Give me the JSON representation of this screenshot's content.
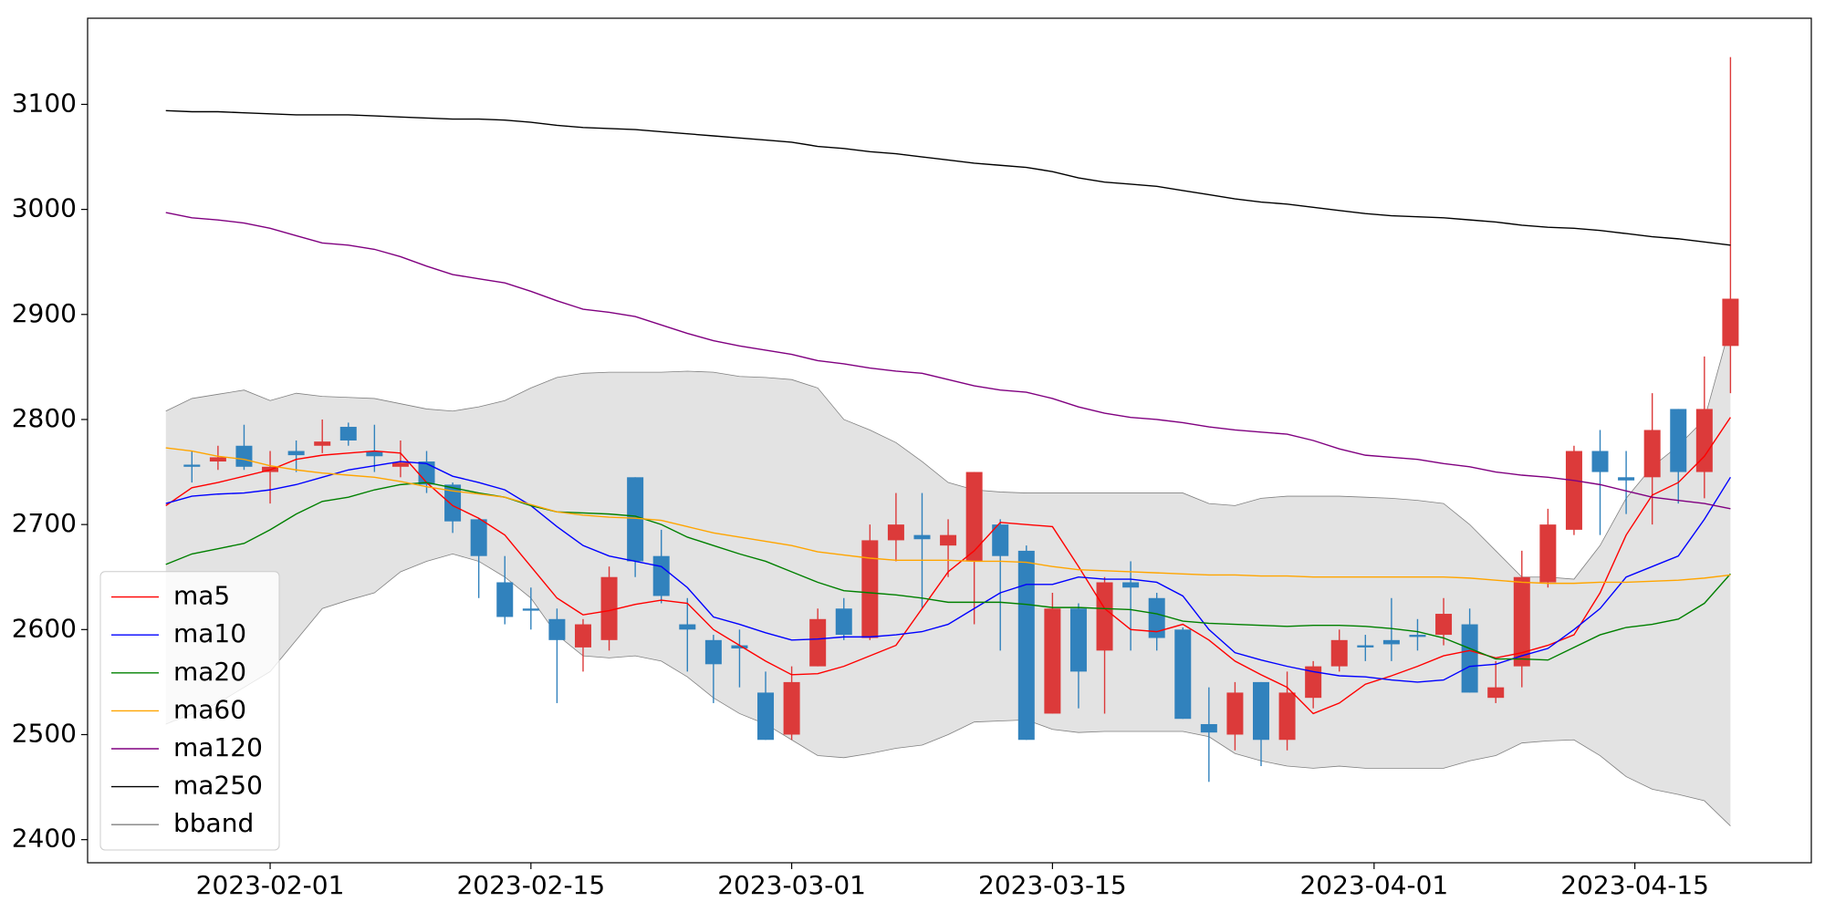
{
  "chart_data": {
    "type": "candlestick",
    "x": [
      "2023-01-26",
      "2023-01-27",
      "2023-01-30",
      "2023-01-31",
      "2023-02-01",
      "2023-02-02",
      "2023-02-03",
      "2023-02-06",
      "2023-02-07",
      "2023-02-08",
      "2023-02-09",
      "2023-02-10",
      "2023-02-13",
      "2023-02-14",
      "2023-02-15",
      "2023-02-16",
      "2023-02-17",
      "2023-02-20",
      "2023-02-21",
      "2023-02-22",
      "2023-02-23",
      "2023-02-24",
      "2023-02-27",
      "2023-02-28",
      "2023-03-01",
      "2023-03-02",
      "2023-03-03",
      "2023-03-06",
      "2023-03-07",
      "2023-03-08",
      "2023-03-09",
      "2023-03-10",
      "2023-03-13",
      "2023-03-14",
      "2023-03-15",
      "2023-03-16",
      "2023-03-17",
      "2023-03-20",
      "2023-03-21",
      "2023-03-22",
      "2023-03-23",
      "2023-03-24",
      "2023-03-27",
      "2023-03-28",
      "2023-03-29",
      "2023-03-30",
      "2023-03-31",
      "2023-04-03",
      "2023-04-04",
      "2023-04-05",
      "2023-04-06",
      "2023-04-07",
      "2023-04-10",
      "2023-04-11",
      "2023-04-12",
      "2023-04-13",
      "2023-04-14",
      "2023-04-17",
      "2023-04-18",
      "2023-04-19",
      "2023-04-20"
    ],
    "open": [
      null,
      2757,
      2760,
      2775,
      2750,
      2770,
      2775,
      2793,
      2770,
      2755,
      2760,
      2738,
      2705,
      2645,
      2620,
      2610,
      2583,
      2590,
      2745,
      2670,
      2605,
      2590,
      2585,
      2540,
      2500,
      2565,
      2620,
      2592,
      2685,
      2690,
      2680,
      2665,
      2700,
      2675,
      2520,
      2620,
      2580,
      2645,
      2630,
      2600,
      2510,
      2500,
      2550,
      2495,
      2535,
      2565,
      2585,
      2590,
      2595,
      2595,
      2605,
      2535,
      2565,
      2645,
      2695,
      2770,
      2745,
      2745,
      2810,
      2750,
      2870
    ],
    "high": [
      null,
      2770,
      2775,
      2795,
      2770,
      2780,
      2800,
      2797,
      2795,
      2780,
      2770,
      2740,
      2706,
      2670,
      2640,
      2620,
      2610,
      2660,
      2745,
      2695,
      2630,
      2595,
      2600,
      2560,
      2565,
      2620,
      2630,
      2700,
      2730,
      2730,
      2705,
      2750,
      2705,
      2680,
      2635,
      2625,
      2650,
      2665,
      2635,
      2602,
      2545,
      2550,
      2550,
      2560,
      2570,
      2600,
      2595,
      2630,
      2610,
      2630,
      2620,
      2570,
      2675,
      2715,
      2775,
      2790,
      2770,
      2825,
      2810,
      2860,
      3145
    ],
    "low": [
      null,
      2740,
      2752,
      2752,
      2720,
      2750,
      2768,
      2775,
      2750,
      2745,
      2730,
      2692,
      2630,
      2605,
      2600,
      2530,
      2560,
      2580,
      2650,
      2625,
      2560,
      2530,
      2545,
      2495,
      2495,
      2565,
      2590,
      2590,
      2665,
      2620,
      2650,
      2605,
      2580,
      2495,
      2520,
      2525,
      2520,
      2580,
      2580,
      2515,
      2455,
      2485,
      2470,
      2485,
      2525,
      2560,
      2570,
      2570,
      2580,
      2585,
      2540,
      2530,
      2545,
      2640,
      2690,
      2690,
      2710,
      2700,
      2720,
      2725,
      2825
    ],
    "close": [
      null,
      2755,
      2764,
      2755,
      2755,
      2766,
      2779,
      2780,
      2765,
      2759,
      2738,
      2703,
      2670,
      2612,
      2618,
      2590,
      2605,
      2650,
      2665,
      2632,
      2600,
      2567,
      2582,
      2495,
      2550,
      2610,
      2595,
      2685,
      2700,
      2686,
      2690,
      2750,
      2670,
      2495,
      2620,
      2560,
      2645,
      2640,
      2592,
      2515,
      2502,
      2540,
      2495,
      2540,
      2565,
      2590,
      2583,
      2586,
      2593,
      2615,
      2540,
      2545,
      2650,
      2700,
      2770,
      2750,
      2742,
      2790,
      2750,
      2810,
      2915
    ],
    "up_color": "#dc3a3a",
    "down_color": "#3182bd",
    "lines": [
      {
        "name": "ma5",
        "color": "#ff0000",
        "values": [
          2718,
          2735,
          2740,
          2746,
          2752,
          2762,
          2766,
          2768,
          2770,
          2768,
          2740,
          2718,
          2706,
          2690,
          2660,
          2630,
          2614,
          2618,
          2624,
          2628,
          2625,
          2600,
          2585,
          2570,
          2557,
          2558,
          2565,
          2575,
          2585,
          2620,
          2655,
          2675,
          2702,
          2700,
          2698,
          2660,
          2620,
          2600,
          2598,
          2605,
          2590,
          2570,
          2557,
          2545,
          2520,
          2530,
          2548,
          2556,
          2565,
          2575,
          2580,
          2573,
          2578,
          2585,
          2595,
          2635,
          2690,
          2728,
          2740,
          2765,
          2802
        ]
      },
      {
        "name": "ma10",
        "color": "#0000ff",
        "values": [
          2720,
          2727,
          2729,
          2730,
          2733,
          2738,
          2745,
          2752,
          2756,
          2760,
          2758,
          2746,
          2740,
          2733,
          2718,
          2698,
          2680,
          2670,
          2665,
          2660,
          2640,
          2612,
          2605,
          2597,
          2590,
          2591,
          2593,
          2593,
          2595,
          2598,
          2605,
          2620,
          2635,
          2643,
          2643,
          2650,
          2648,
          2648,
          2645,
          2632,
          2600,
          2578,
          2571,
          2565,
          2560,
          2556,
          2555,
          2552,
          2550,
          2552,
          2565,
          2567,
          2575,
          2582,
          2600,
          2620,
          2650,
          2660,
          2670,
          2705,
          2745
        ]
      },
      {
        "name": "ma20",
        "color": "#008000",
        "values": [
          2662,
          2672,
          2677,
          2682,
          2695,
          2710,
          2722,
          2726,
          2733,
          2738,
          2740,
          2735,
          2730,
          2726,
          2718,
          2712,
          2711,
          2710,
          2708,
          2700,
          2688,
          2680,
          2672,
          2665,
          2655,
          2645,
          2637,
          2635,
          2633,
          2630,
          2626,
          2626,
          2626,
          2624,
          2621,
          2621,
          2620,
          2619,
          2615,
          2608,
          2606,
          2605,
          2604,
          2603,
          2604,
          2604,
          2603,
          2601,
          2598,
          2592,
          2582,
          2572,
          2572,
          2571,
          2583,
          2595,
          2602,
          2605,
          2610,
          2625,
          2653
        ]
      },
      {
        "name": "ma60",
        "color": "#ffa500",
        "values": [
          2773,
          2770,
          2765,
          2762,
          2756,
          2752,
          2749,
          2747,
          2745,
          2741,
          2736,
          2732,
          2729,
          2726,
          2719,
          2712,
          2709,
          2707,
          2706,
          2704,
          2698,
          2692,
          2688,
          2684,
          2680,
          2674,
          2671,
          2668,
          2666,
          2666,
          2666,
          2665,
          2665,
          2664,
          2660,
          2657,
          2656,
          2655,
          2654,
          2653,
          2652,
          2652,
          2651,
          2651,
          2650,
          2650,
          2650,
          2650,
          2650,
          2650,
          2649,
          2647,
          2645,
          2644,
          2644,
          2645,
          2645,
          2646,
          2647,
          2649,
          2652
        ]
      },
      {
        "name": "ma120",
        "color": "#800080",
        "values": [
          2997,
          2992,
          2990,
          2987,
          2982,
          2975,
          2968,
          2966,
          2962,
          2955,
          2946,
          2938,
          2934,
          2930,
          2922,
          2913,
          2905,
          2902,
          2898,
          2890,
          2882,
          2875,
          2870,
          2866,
          2862,
          2856,
          2853,
          2849,
          2846,
          2844,
          2838,
          2832,
          2828,
          2826,
          2820,
          2812,
          2806,
          2802,
          2800,
          2797,
          2793,
          2790,
          2788,
          2786,
          2780,
          2772,
          2766,
          2764,
          2762,
          2758,
          2755,
          2750,
          2747,
          2745,
          2742,
          2738,
          2732,
          2726,
          2723,
          2720,
          2715
        ]
      },
      {
        "name": "ma250",
        "color": "#000000",
        "values": [
          3094,
          3093,
          3093,
          3092,
          3091,
          3090,
          3090,
          3090,
          3089,
          3088,
          3087,
          3086,
          3086,
          3085,
          3083,
          3080,
          3078,
          3077,
          3076,
          3074,
          3072,
          3070,
          3068,
          3066,
          3064,
          3060,
          3058,
          3055,
          3053,
          3050,
          3047,
          3044,
          3042,
          3040,
          3036,
          3030,
          3026,
          3024,
          3022,
          3018,
          3014,
          3010,
          3007,
          3005,
          3002,
          2999,
          2996,
          2994,
          2993,
          2992,
          2990,
          2988,
          2985,
          2983,
          2982,
          2980,
          2977,
          2974,
          2972,
          2969,
          2966
        ]
      }
    ],
    "bband": {
      "name": "bband",
      "color": "#808080",
      "fill": "#e3e3e3",
      "upper": [
        2808,
        2820,
        2824,
        2828,
        2818,
        2825,
        2822,
        2821,
        2820,
        2815,
        2810,
        2808,
        2812,
        2818,
        2830,
        2840,
        2844,
        2845,
        2845,
        2845,
        2846,
        2845,
        2841,
        2840,
        2838,
        2830,
        2800,
        2790,
        2778,
        2760,
        2740,
        2733,
        2731,
        2730,
        2730,
        2730,
        2730,
        2730,
        2730,
        2730,
        2720,
        2718,
        2725,
        2727,
        2727,
        2727,
        2726,
        2725,
        2723,
        2720,
        2700,
        2675,
        2650,
        2650,
        2648,
        2680,
        2725,
        2755,
        2775,
        2800,
        2890
      ],
      "lower": [
        2510,
        2520,
        2530,
        2545,
        2560,
        2590,
        2620,
        2628,
        2635,
        2655,
        2665,
        2672,
        2665,
        2650,
        2630,
        2595,
        2575,
        2573,
        2575,
        2570,
        2555,
        2535,
        2520,
        2510,
        2495,
        2480,
        2478,
        2482,
        2487,
        2490,
        2500,
        2512,
        2513,
        2514,
        2505,
        2502,
        2503,
        2503,
        2503,
        2503,
        2498,
        2482,
        2475,
        2470,
        2468,
        2470,
        2468,
        2468,
        2468,
        2468,
        2475,
        2480,
        2492,
        2494,
        2495,
        2480,
        2460,
        2448,
        2443,
        2437,
        2413
      ]
    },
    "ylim": [
      2378,
      3182
    ],
    "yticks": [
      2400,
      2500,
      2600,
      2700,
      2800,
      2900,
      3000,
      3100
    ],
    "xticks": [
      "2023-02-01",
      "2023-02-15",
      "2023-03-01",
      "2023-03-15",
      "2023-04-01",
      "2023-04-15"
    ],
    "legend": "lower left"
  }
}
